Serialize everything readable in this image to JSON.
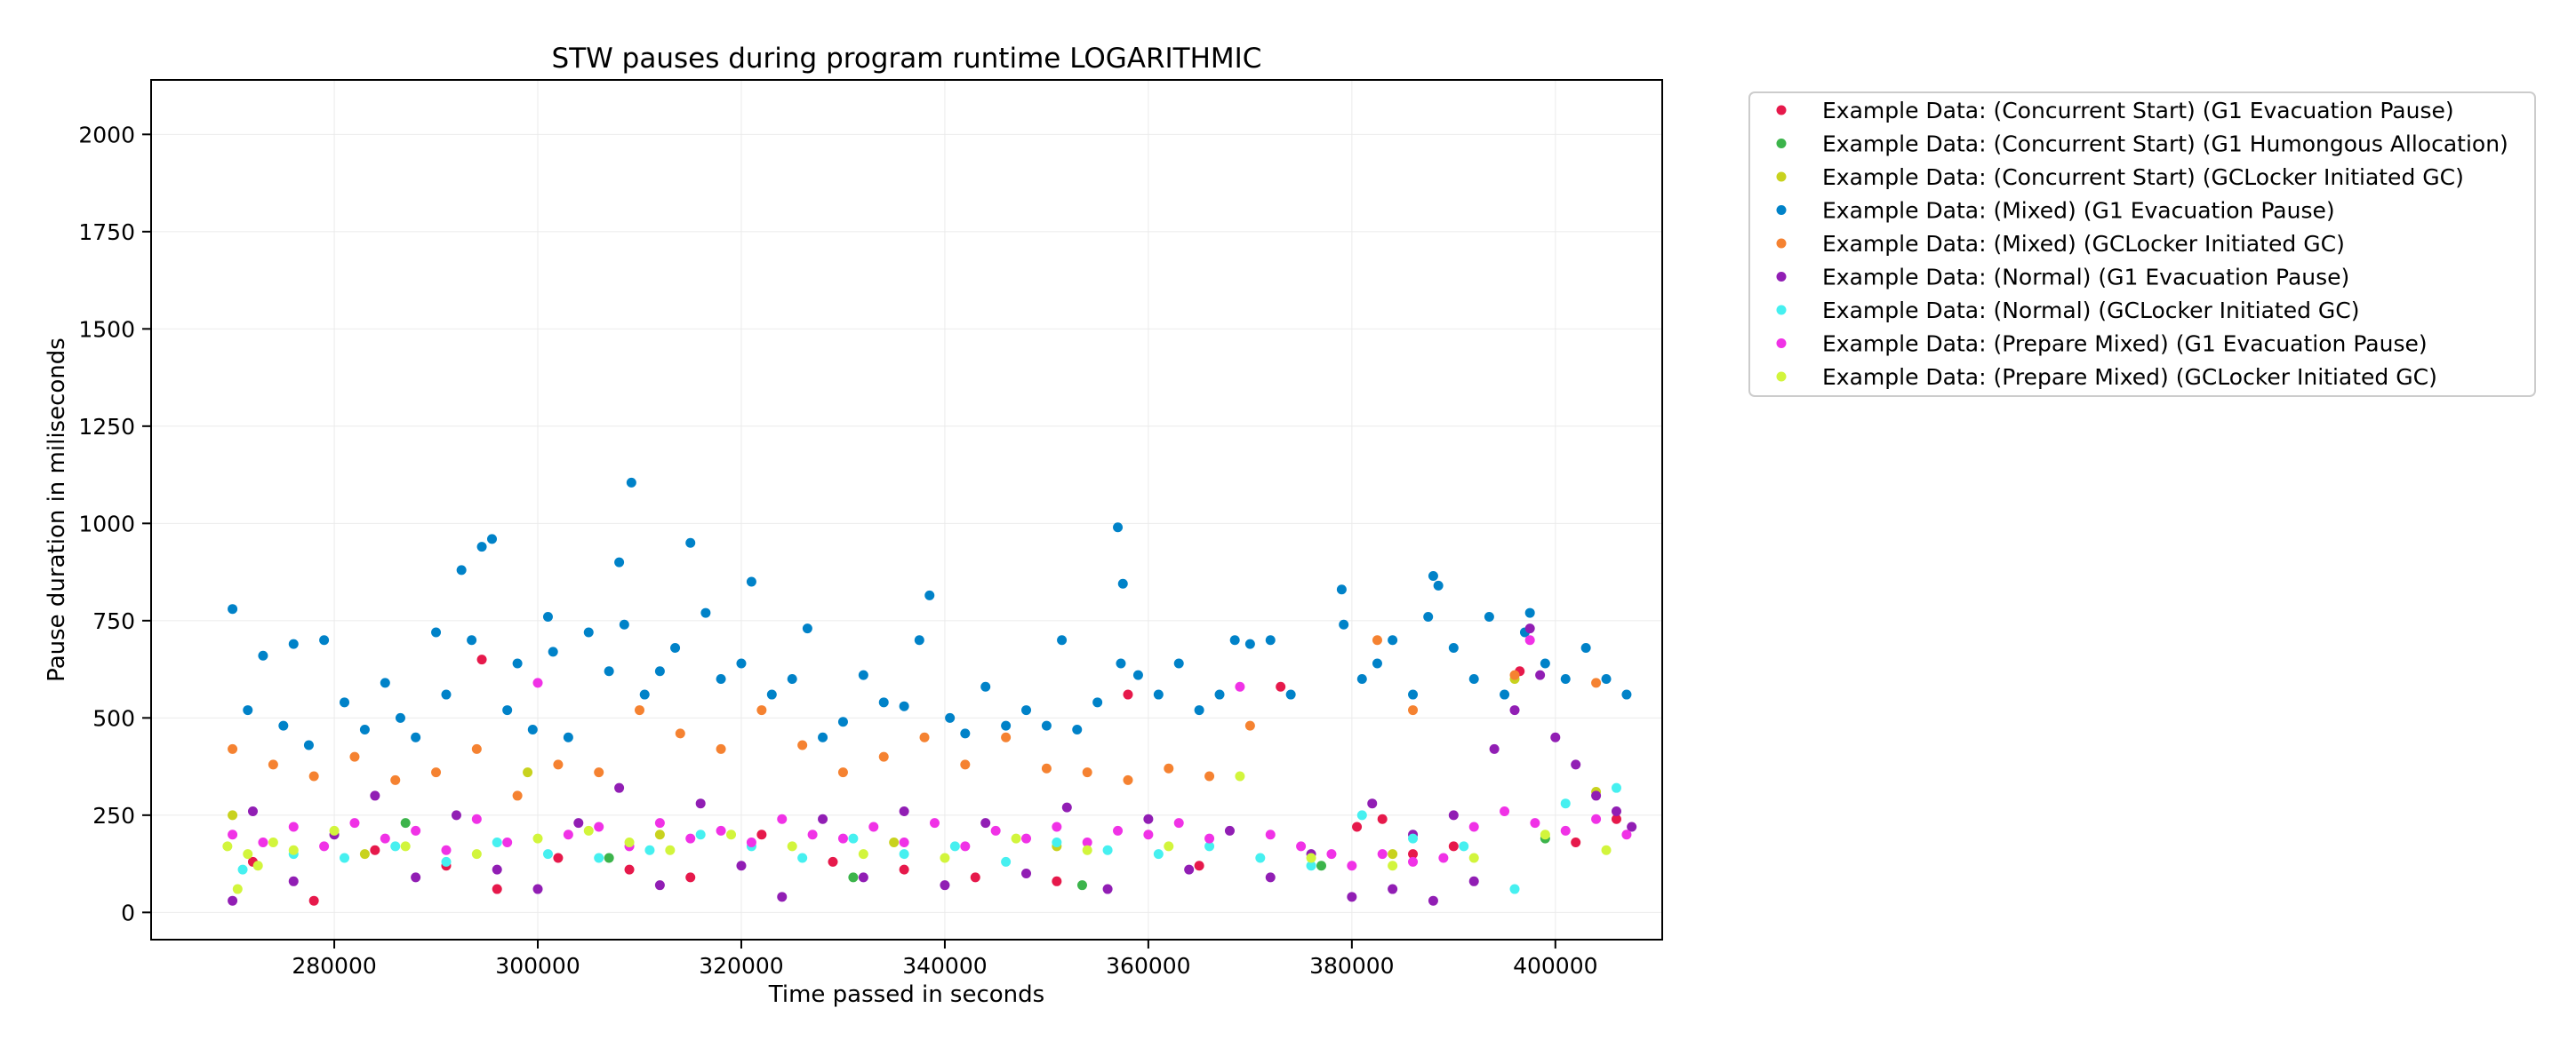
{
  "chart_data": {
    "type": "scatter",
    "title": "STW pauses during program runtime LOGARITHMIC",
    "xlabel": "Time passed in seconds",
    "ylabel": "Pause duration in miliseconds",
    "xlim": [
      262000,
      410500
    ],
    "ylim": [
      -70,
      2140
    ],
    "xticks": [
      280000,
      300000,
      320000,
      340000,
      360000,
      380000,
      400000
    ],
    "xtick_labels": [
      "280000",
      "300000",
      "320000",
      "340000",
      "360000",
      "380000",
      "400000"
    ],
    "yticks": [
      0,
      250,
      500,
      750,
      1000,
      1250,
      1500,
      1750,
      2000
    ],
    "ytick_labels": [
      "0",
      "250",
      "500",
      "750",
      "1000",
      "1250",
      "1500",
      "1750",
      "2000"
    ],
    "grid": true,
    "legend_position": "outside-top-right",
    "series": [
      {
        "name": "Example Data: (Concurrent Start) (G1 Evacuation Pause)",
        "color": "#e6194b",
        "x": [
          272000,
          278000,
          284000,
          291000,
          294500,
          296000,
          302000,
          309000,
          315000,
          322000,
          329000,
          336000,
          343000,
          351000,
          358000,
          365000,
          373000,
          380500,
          383000,
          386000,
          390000,
          396500,
          402000,
          406000
        ],
        "y": [
          130,
          30,
          160,
          120,
          650,
          60,
          140,
          110,
          90,
          200,
          130,
          110,
          90,
          80,
          560,
          120,
          580,
          220,
          240,
          150,
          170,
          620,
          180,
          240
        ]
      },
      {
        "name": "Example Data: (Concurrent Start) (G1 Humongous Allocation)",
        "color": "#3cb44b",
        "x": [
          287000,
          307000,
          331000,
          353500,
          377000,
          399000
        ],
        "y": [
          230,
          140,
          90,
          70,
          120,
          190
        ]
      },
      {
        "name": "Example Data: (Concurrent Start) (GCLocker Initiated GC)",
        "color": "#c8d21e",
        "x": [
          270000,
          283000,
          299000,
          312000,
          335000,
          351000,
          384000,
          396000,
          404000
        ],
        "y": [
          250,
          150,
          360,
          200,
          180,
          170,
          150,
          600,
          310
        ]
      },
      {
        "name": "Example Data: (Mixed) (G1 Evacuation Pause)",
        "color": "#0082c8",
        "x": [
          270000,
          271500,
          273000,
          275000,
          276000,
          277500,
          279000,
          281000,
          283000,
          285000,
          286500,
          288000,
          290000,
          291000,
          292500,
          293500,
          294500,
          295500,
          297000,
          298000,
          299500,
          301000,
          301500,
          303000,
          305000,
          307000,
          308000,
          308500,
          309200,
          310500,
          312000,
          313500,
          315000,
          316500,
          318000,
          320000,
          321000,
          323000,
          325000,
          326500,
          328000,
          330000,
          332000,
          334000,
          336000,
          337500,
          338500,
          340500,
          342000,
          344000,
          346000,
          348000,
          350000,
          351500,
          353000,
          355000,
          357000,
          357300,
          357500,
          359000,
          361000,
          363000,
          365000,
          367000,
          368500,
          370000,
          372000,
          374000,
          379000,
          379200,
          381000,
          382500,
          384000,
          386000,
          387500,
          388000,
          388500,
          390000,
          392000,
          393500,
          395000,
          397000,
          397500,
          399000,
          401000,
          403000,
          405000,
          407000
        ],
        "y": [
          780,
          520,
          660,
          480,
          690,
          430,
          700,
          540,
          470,
          590,
          500,
          450,
          720,
          560,
          880,
          700,
          940,
          960,
          520,
          640,
          470,
          760,
          670,
          450,
          720,
          620,
          900,
          740,
          1105,
          560,
          620,
          680,
          950,
          770,
          600,
          640,
          850,
          560,
          600,
          730,
          450,
          490,
          610,
          540,
          530,
          700,
          815,
          500,
          460,
          580,
          480,
          520,
          480,
          700,
          470,
          540,
          990,
          640,
          845,
          610,
          560,
          640,
          520,
          560,
          700,
          690,
          700,
          560,
          830,
          740,
          600,
          640,
          700,
          560,
          760,
          865,
          840,
          680,
          600,
          760,
          560,
          720,
          770,
          640,
          600,
          680,
          600,
          560
        ]
      },
      {
        "name": "Example Data: (Mixed) (GCLocker Initiated GC)",
        "color": "#f58231",
        "x": [
          270000,
          274000,
          278000,
          282000,
          286000,
          290000,
          294000,
          298000,
          302000,
          306000,
          310000,
          314000,
          318000,
          322000,
          326000,
          330000,
          334000,
          338000,
          342000,
          346000,
          350000,
          354000,
          358000,
          362000,
          366000,
          370000,
          382500,
          386000,
          396000,
          404000
        ],
        "y": [
          420,
          380,
          350,
          400,
          340,
          360,
          420,
          300,
          380,
          360,
          520,
          460,
          420,
          520,
          430,
          360,
          400,
          450,
          380,
          450,
          370,
          360,
          340,
          370,
          350,
          480,
          700,
          520,
          610,
          590
        ]
      },
      {
        "name": "Example Data: (Normal) (G1 Evacuation Pause)",
        "color": "#911eb4",
        "x": [
          270000,
          272000,
          276000,
          280000,
          284000,
          288000,
          292000,
          296000,
          300000,
          304000,
          308000,
          312000,
          316000,
          320000,
          324000,
          328000,
          332000,
          336000,
          340000,
          344000,
          348000,
          352000,
          356000,
          360000,
          364000,
          368000,
          372000,
          376000,
          380000,
          382000,
          384000,
          386000,
          388000,
          390000,
          392000,
          394000,
          396000,
          397500,
          398500,
          400000,
          402000,
          404000,
          406000,
          407500
        ],
        "y": [
          30,
          260,
          80,
          200,
          300,
          90,
          250,
          110,
          60,
          230,
          320,
          70,
          280,
          120,
          40,
          240,
          90,
          260,
          70,
          230,
          100,
          270,
          60,
          240,
          110,
          210,
          90,
          150,
          40,
          280,
          60,
          200,
          30,
          250,
          80,
          420,
          520,
          730,
          610,
          450,
          380,
          300,
          260,
          220
        ]
      },
      {
        "name": "Example Data: (Normal) (GCLocker Initiated GC)",
        "color": "#46f0f0",
        "x": [
          271000,
          276000,
          281000,
          286000,
          291000,
          296000,
          301000,
          306000,
          311000,
          316000,
          321000,
          326000,
          331000,
          336000,
          341000,
          346000,
          351000,
          356000,
          361000,
          366000,
          371000,
          376000,
          381000,
          386000,
          391000,
          396000,
          401000,
          406000
        ],
        "y": [
          110,
          150,
          140,
          170,
          130,
          180,
          150,
          140,
          160,
          200,
          170,
          140,
          190,
          150,
          170,
          130,
          180,
          160,
          150,
          170,
          140,
          120,
          250,
          190,
          170,
          60,
          280,
          320
        ]
      },
      {
        "name": "Example Data: (Prepare Mixed) (G1 Evacuation Pause)",
        "color": "#f032e6",
        "x": [
          270000,
          273000,
          276000,
          279000,
          282000,
          285000,
          288000,
          291000,
          294000,
          297000,
          300000,
          303000,
          306000,
          309000,
          312000,
          315000,
          318000,
          321000,
          324000,
          327000,
          330000,
          333000,
          336000,
          339000,
          342000,
          345000,
          348000,
          351000,
          354000,
          357000,
          360000,
          363000,
          366000,
          369000,
          372000,
          375000,
          378000,
          380000,
          383000,
          386000,
          389000,
          392000,
          395000,
          397500,
          398000,
          401000,
          404000,
          407000
        ],
        "y": [
          200,
          180,
          220,
          170,
          230,
          190,
          210,
          160,
          240,
          180,
          590,
          200,
          220,
          170,
          230,
          190,
          210,
          180,
          240,
          200,
          190,
          220,
          180,
          230,
          170,
          210,
          190,
          220,
          180,
          210,
          200,
          230,
          190,
          580,
          200,
          170,
          150,
          120,
          150,
          130,
          140,
          220,
          260,
          700,
          230,
          210,
          240,
          200
        ]
      },
      {
        "name": "Example Data: (Prepare Mixed) (GCLocker Initiated GC)",
        "color": "#d2f53c",
        "x": [
          269500,
          270500,
          271500,
          272500,
          274000,
          276000,
          280000,
          287000,
          294000,
          300000,
          305000,
          309000,
          313000,
          319000,
          325000,
          332000,
          340000,
          347000,
          354000,
          362000,
          369000,
          376000,
          384000,
          392000,
          399000,
          405000
        ],
        "y": [
          170,
          60,
          150,
          120,
          180,
          160,
          210,
          170,
          150,
          190,
          210,
          180,
          160,
          200,
          170,
          150,
          140,
          190,
          160,
          170,
          350,
          140,
          120,
          140,
          200,
          160
        ]
      }
    ]
  }
}
